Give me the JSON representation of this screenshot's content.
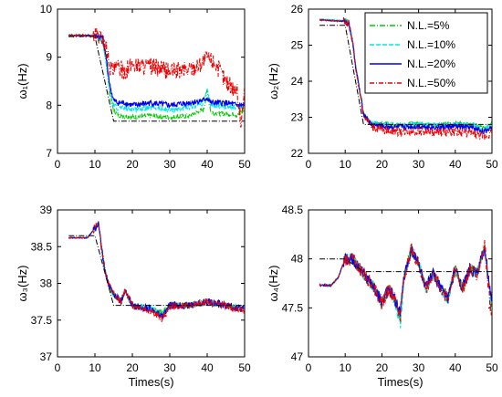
{
  "chart_data": [
    {
      "type": "line",
      "ylabel": "ω₁(Hz)",
      "xlabel": "",
      "xlim": [
        0,
        50
      ],
      "ylim": [
        7,
        10
      ],
      "xticks": [
        0,
        10,
        20,
        30,
        40,
        50
      ],
      "yticks": [
        7,
        8,
        9,
        10
      ],
      "reference": {
        "x": [
          3,
          10,
          15,
          50
        ],
        "y": [
          9.43,
          9.43,
          7.67,
          7.67
        ]
      },
      "series": [
        {
          "name": "N.L.=5%",
          "color": "#00cc00",
          "x": [
            3,
            10,
            12,
            13,
            14,
            15,
            16,
            18,
            20,
            25,
            30,
            35,
            39,
            40,
            41,
            45,
            48,
            50
          ],
          "y": [
            9.47,
            9.45,
            9.35,
            8.9,
            8.2,
            7.9,
            7.8,
            7.78,
            7.75,
            7.78,
            7.75,
            7.78,
            7.9,
            8.3,
            7.85,
            7.82,
            7.8,
            7.9
          ],
          "noise": 0.05
        },
        {
          "name": "N.L.=10%",
          "color": "#00e5e5",
          "x": [
            3,
            10,
            12,
            13,
            14,
            15,
            16,
            18,
            20,
            25,
            30,
            35,
            39,
            40,
            41,
            45,
            48,
            50
          ],
          "y": [
            9.46,
            9.44,
            9.35,
            8.9,
            8.3,
            8.0,
            7.95,
            7.93,
            7.92,
            7.95,
            7.9,
            7.95,
            8.05,
            8.3,
            8.0,
            7.98,
            7.95,
            8.0
          ],
          "noise": 0.06
        },
        {
          "name": "N.L.=20%",
          "color": "#0000ee",
          "x": [
            3,
            10,
            12,
            13,
            14,
            15,
            16,
            18,
            20,
            25,
            30,
            35,
            39,
            40,
            41,
            45,
            48,
            50
          ],
          "y": [
            9.45,
            9.45,
            9.4,
            9.0,
            8.4,
            8.1,
            8.05,
            8.05,
            8.0,
            8.05,
            8.0,
            8.05,
            8.1,
            8.15,
            8.05,
            8.05,
            8.0,
            8.0
          ],
          "noise": 0.06
        },
        {
          "name": "N.L.=50%",
          "color": "#ee0000",
          "x": [
            3,
            10,
            12,
            13,
            14,
            15,
            16,
            18,
            20,
            25,
            30,
            35,
            38,
            40,
            42,
            45,
            48,
            49,
            50
          ],
          "y": [
            9.45,
            9.45,
            9.4,
            9.2,
            8.8,
            8.7,
            8.8,
            8.7,
            8.85,
            8.8,
            8.7,
            8.75,
            8.85,
            9.0,
            8.9,
            8.5,
            8.3,
            7.6,
            8.3
          ],
          "noise": 0.18
        }
      ]
    },
    {
      "type": "line",
      "ylabel": "ω₂(Hz)",
      "xlabel": "",
      "xlim": [
        0,
        50
      ],
      "ylim": [
        22,
        26
      ],
      "xticks": [
        0,
        10,
        20,
        30,
        40,
        50
      ],
      "yticks": [
        22,
        23,
        24,
        25,
        26
      ],
      "legend": "top-right",
      "reference": {
        "x": [
          3,
          10,
          15,
          50
        ],
        "y": [
          25.55,
          25.55,
          22.8,
          22.8
        ]
      },
      "series": [
        {
          "name": "N.L.=5%",
          "color": "#00cc00",
          "x": [
            3,
            10,
            11,
            12,
            13,
            14,
            15,
            17,
            20,
            25,
            30,
            35,
            40,
            45,
            48,
            50
          ],
          "y": [
            25.72,
            25.68,
            25.6,
            25.1,
            24.3,
            23.7,
            23.1,
            22.85,
            22.82,
            22.8,
            22.82,
            22.8,
            22.82,
            22.8,
            22.7,
            22.82
          ],
          "noise": 0.06
        },
        {
          "name": "N.L.=10%",
          "color": "#00e5e5",
          "x": [
            3,
            10,
            11,
            12,
            13,
            14,
            15,
            17,
            20,
            25,
            30,
            35,
            40,
            45,
            48,
            50
          ],
          "y": [
            25.72,
            25.68,
            25.6,
            25.1,
            24.3,
            23.7,
            23.1,
            22.85,
            22.8,
            22.78,
            22.8,
            22.78,
            22.8,
            22.78,
            22.65,
            22.8
          ],
          "noise": 0.07
        },
        {
          "name": "N.L.=20%",
          "color": "#0000ee",
          "x": [
            3,
            10,
            11,
            12,
            13,
            14,
            15,
            17,
            20,
            25,
            30,
            35,
            40,
            45,
            48,
            50
          ],
          "y": [
            25.7,
            25.66,
            25.6,
            25.1,
            24.3,
            23.7,
            23.1,
            22.8,
            22.75,
            22.72,
            22.75,
            22.72,
            22.75,
            22.7,
            22.6,
            22.75
          ],
          "noise": 0.08
        },
        {
          "name": "N.L.=50%",
          "color": "#ee0000",
          "x": [
            3,
            10,
            11,
            12,
            13,
            14,
            15,
            17,
            20,
            25,
            30,
            35,
            40,
            45,
            48,
            50
          ],
          "y": [
            25.7,
            25.66,
            25.6,
            25.1,
            24.3,
            23.7,
            23.1,
            22.75,
            22.65,
            22.6,
            22.62,
            22.58,
            22.6,
            22.55,
            22.45,
            22.6
          ],
          "noise": 0.12
        }
      ]
    },
    {
      "type": "line",
      "ylabel": "ω₃(Hz)",
      "xlabel": "",
      "xlim": [
        0,
        50
      ],
      "ylim": [
        37,
        39
      ],
      "xticks": [
        0,
        10,
        20,
        30,
        40,
        50
      ],
      "yticks": [
        37,
        37.5,
        38,
        38.5,
        39
      ],
      "reference": {
        "x": [
          3,
          10,
          15,
          50
        ],
        "y": [
          38.65,
          38.65,
          37.7,
          37.7
        ]
      },
      "series": [
        {
          "name": "N.L.=5%",
          "color": "#00cc00",
          "x": [
            3,
            8,
            10,
            11,
            12,
            13,
            14,
            15,
            17,
            18,
            20,
            25,
            28,
            30,
            35,
            40,
            45,
            50
          ],
          "y": [
            38.62,
            38.62,
            38.75,
            38.8,
            38.4,
            38.1,
            37.95,
            37.85,
            37.75,
            37.9,
            37.7,
            37.65,
            37.6,
            37.7,
            37.7,
            37.75,
            37.7,
            37.65
          ],
          "noise": 0.04
        },
        {
          "name": "N.L.=10%",
          "color": "#00e5e5",
          "x": [
            3,
            8,
            10,
            11,
            12,
            13,
            14,
            15,
            17,
            18,
            20,
            25,
            28,
            30,
            35,
            40,
            45,
            50
          ],
          "y": [
            38.62,
            38.62,
            38.75,
            38.8,
            38.4,
            38.1,
            37.95,
            37.85,
            37.75,
            37.9,
            37.7,
            37.65,
            37.58,
            37.7,
            37.7,
            37.75,
            37.7,
            37.65
          ],
          "noise": 0.04
        },
        {
          "name": "N.L.=20%",
          "color": "#0000ee",
          "x": [
            3,
            8,
            10,
            11,
            12,
            13,
            14,
            15,
            17,
            18,
            20,
            25,
            28,
            30,
            35,
            40,
            45,
            50
          ],
          "y": [
            38.62,
            38.62,
            38.75,
            38.8,
            38.4,
            38.1,
            37.95,
            37.85,
            37.75,
            37.9,
            37.7,
            37.65,
            37.55,
            37.7,
            37.7,
            37.75,
            37.7,
            37.65
          ],
          "noise": 0.05
        },
        {
          "name": "N.L.=50%",
          "color": "#ee0000",
          "x": [
            3,
            8,
            10,
            11,
            12,
            13,
            14,
            15,
            17,
            18,
            20,
            25,
            28,
            30,
            35,
            40,
            45,
            50
          ],
          "y": [
            38.62,
            38.62,
            38.75,
            38.82,
            38.4,
            38.1,
            37.95,
            37.85,
            37.75,
            37.92,
            37.7,
            37.62,
            37.52,
            37.68,
            37.7,
            37.75,
            37.7,
            37.62
          ],
          "noise": 0.05
        }
      ]
    },
    {
      "type": "line",
      "ylabel": "ω₄(Hz)",
      "xlabel": "",
      "xlim": [
        0,
        50
      ],
      "ylim": [
        47,
        48.5
      ],
      "xticks": [
        0,
        10,
        20,
        30,
        40,
        50
      ],
      "yticks": [
        47,
        47.5,
        48,
        48.5
      ],
      "reference": {
        "x": [
          3,
          10,
          15,
          50
        ],
        "y": [
          48.0,
          48.0,
          47.87,
          47.87
        ]
      },
      "series": [
        {
          "name": "N.L.=5%",
          "color": "#00cc00",
          "x": [
            3,
            6,
            8,
            10,
            12,
            14,
            16,
            18,
            20,
            22,
            24,
            25,
            26,
            28,
            30,
            32,
            34,
            36,
            38,
            40,
            42,
            44,
            46,
            48,
            50
          ],
          "y": [
            47.73,
            47.73,
            47.8,
            48.0,
            48.0,
            47.9,
            47.8,
            47.7,
            47.55,
            47.7,
            47.55,
            47.4,
            47.8,
            48.1,
            47.95,
            47.7,
            47.85,
            47.7,
            47.6,
            47.9,
            47.7,
            47.9,
            47.85,
            48.1,
            47.5
          ],
          "noise": 0.06
        },
        {
          "name": "N.L.=10%",
          "color": "#00e5e5",
          "x": [
            3,
            6,
            8,
            10,
            12,
            14,
            16,
            18,
            20,
            22,
            24,
            25,
            26,
            28,
            30,
            32,
            34,
            36,
            38,
            40,
            42,
            44,
            46,
            48,
            50
          ],
          "y": [
            47.73,
            47.73,
            47.8,
            48.0,
            48.0,
            47.9,
            47.8,
            47.7,
            47.55,
            47.7,
            47.5,
            47.3,
            47.8,
            48.1,
            47.95,
            47.7,
            47.85,
            47.7,
            47.6,
            47.9,
            47.7,
            47.9,
            47.85,
            48.12,
            47.45
          ],
          "noise": 0.06
        },
        {
          "name": "N.L.=20%",
          "color": "#0000ee",
          "x": [
            3,
            6,
            8,
            10,
            12,
            14,
            16,
            18,
            20,
            22,
            24,
            25,
            26,
            28,
            30,
            32,
            34,
            36,
            38,
            40,
            42,
            44,
            46,
            48,
            50
          ],
          "y": [
            47.73,
            47.73,
            47.8,
            48.0,
            48.0,
            47.9,
            47.8,
            47.7,
            47.55,
            47.7,
            47.55,
            47.45,
            47.8,
            48.1,
            47.95,
            47.7,
            47.85,
            47.7,
            47.6,
            47.9,
            47.7,
            47.9,
            47.85,
            48.12,
            47.5
          ],
          "noise": 0.06
        },
        {
          "name": "N.L.=50%",
          "color": "#ee0000",
          "x": [
            3,
            6,
            8,
            10,
            12,
            14,
            16,
            18,
            20,
            22,
            24,
            25,
            26,
            28,
            30,
            32,
            34,
            36,
            38,
            40,
            42,
            44,
            46,
            48,
            50
          ],
          "y": [
            47.73,
            47.73,
            47.8,
            48.0,
            48.0,
            47.9,
            47.8,
            47.7,
            47.55,
            47.7,
            47.55,
            47.4,
            47.8,
            48.1,
            47.95,
            47.7,
            47.85,
            47.7,
            47.6,
            47.9,
            47.7,
            47.9,
            47.85,
            48.15,
            47.35
          ],
          "noise": 0.07
        }
      ]
    }
  ],
  "bottom_xlabel": "Times(s)",
  "legend": {
    "entries": [
      "N.L.=5%",
      "N.L.=10%",
      "N.L.=20%",
      "N.L.=50%"
    ],
    "colors": [
      "#00cc00",
      "#00e5e5",
      "#0000ee",
      "#ee0000"
    ]
  }
}
